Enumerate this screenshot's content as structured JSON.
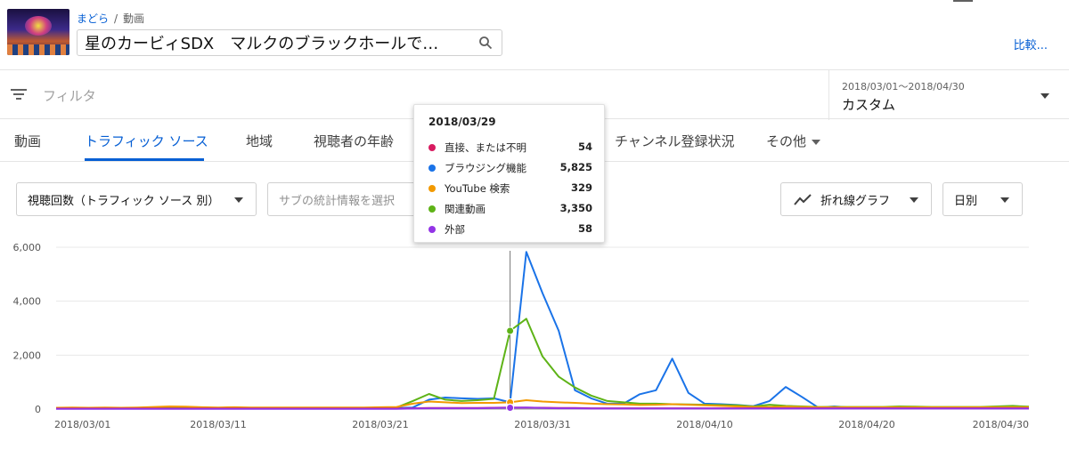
{
  "header": {
    "breadcrumb_channel": "まどら",
    "breadcrumb_sep": "/",
    "breadcrumb_section": "動画",
    "video_title": "星のカービィSDX　マルクのブラックホールで…",
    "compare_label": "比較..."
  },
  "filter": {
    "placeholder": "フィルタ"
  },
  "date": {
    "range": "2018/03/01～2018/04/30",
    "label": "カスタム"
  },
  "tabs": [
    {
      "label": "動画"
    },
    {
      "label": "トラフィック ソース"
    },
    {
      "label": "地域"
    },
    {
      "label": "視聴者の年齢"
    },
    {
      "label": "チャンネル登録状況"
    },
    {
      "label": "その他"
    }
  ],
  "controls": {
    "metric": "視聴回数（トラフィック ソース 別）",
    "sub_metric": "サブの統計情報を選択",
    "chart_type": "折れ線グラフ",
    "interval": "日別"
  },
  "tooltip": {
    "date": "2018/03/29",
    "rows": [
      {
        "name": "直接、または不明",
        "value": "54",
        "color": "#d81b60"
      },
      {
        "name": "ブラウジング機能",
        "value": "5,825",
        "color": "#1a73e8"
      },
      {
        "name": "YouTube 検索",
        "value": "329",
        "color": "#f29900"
      },
      {
        "name": "関連動画",
        "value": "3,350",
        "color": "#5eb317"
      },
      {
        "name": "外部",
        "value": "58",
        "color": "#9334e6"
      }
    ]
  },
  "chart_data": {
    "type": "line",
    "y_ticks": [
      "0",
      "2,000",
      "4,000",
      "6,000"
    ],
    "ylim": [
      0,
      6000
    ],
    "x_start": "2018/03/01",
    "x_tick_labels": [
      "2018/03/01",
      "2018/03/11",
      "2018/03/21",
      "2018/03/31",
      "2018/04/10",
      "2018/04/20",
      "2018/04/30"
    ],
    "highlight_date": "2018/03/29",
    "series": [
      {
        "name": "ブラウジング機能",
        "color": "#1a73e8",
        "values": [
          20,
          30,
          25,
          30,
          20,
          25,
          30,
          25,
          30,
          25,
          30,
          25,
          30,
          25,
          30,
          25,
          30,
          25,
          30,
          25,
          25,
          40,
          60,
          350,
          430,
          400,
          380,
          400,
          250,
          5825,
          4300,
          2900,
          700,
          400,
          200,
          200,
          550,
          700,
          1870,
          600,
          200,
          180,
          150,
          110,
          300,
          820,
          450,
          60,
          100,
          60,
          60,
          60,
          60,
          60,
          60,
          60,
          60,
          60,
          60,
          60,
          60
        ]
      },
      {
        "name": "関連動画",
        "color": "#5eb317",
        "values": [
          40,
          50,
          40,
          50,
          40,
          45,
          50,
          40,
          50,
          40,
          50,
          40,
          50,
          40,
          50,
          40,
          50,
          40,
          50,
          40,
          50,
          60,
          300,
          560,
          350,
          300,
          330,
          380,
          2900,
          3350,
          1950,
          1200,
          800,
          500,
          300,
          250,
          200,
          200,
          180,
          170,
          160,
          150,
          140,
          100,
          160,
          120,
          100,
          80,
          80,
          80,
          80,
          80,
          100,
          90,
          80,
          80,
          80,
          80,
          100,
          120,
          90
        ]
      },
      {
        "name": "YouTube 検索",
        "color": "#f29900",
        "values": [
          50,
          60,
          50,
          60,
          50,
          60,
          80,
          100,
          90,
          70,
          60,
          70,
          60,
          60,
          60,
          60,
          60,
          60,
          60,
          60,
          70,
          80,
          200,
          280,
          250,
          220,
          230,
          230,
          250,
          329,
          280,
          250,
          230,
          200,
          180,
          170,
          150,
          160,
          180,
          160,
          140,
          120,
          100,
          80,
          80,
          90,
          80,
          70,
          70,
          70,
          70,
          70,
          70,
          70,
          70,
          70,
          70,
          70,
          70,
          70,
          70
        ]
      },
      {
        "name": "直接、または不明",
        "color": "#d81b60",
        "values": [
          20,
          20,
          20,
          20,
          20,
          20,
          20,
          20,
          20,
          20,
          20,
          20,
          20,
          20,
          20,
          20,
          20,
          20,
          20,
          20,
          20,
          20,
          30,
          40,
          40,
          40,
          40,
          50,
          60,
          54,
          50,
          40,
          40,
          30,
          30,
          30,
          30,
          30,
          30,
          30,
          30,
          30,
          30,
          30,
          30,
          30,
          30,
          30,
          30,
          30,
          30,
          30,
          30,
          30,
          30,
          30,
          30,
          30,
          30,
          30,
          30
        ]
      },
      {
        "name": "外部",
        "color": "#9334e6",
        "values": [
          10,
          10,
          10,
          10,
          10,
          10,
          10,
          10,
          10,
          10,
          10,
          10,
          10,
          10,
          10,
          10,
          10,
          10,
          10,
          10,
          10,
          10,
          20,
          30,
          30,
          30,
          30,
          40,
          50,
          58,
          40,
          30,
          30,
          20,
          20,
          20,
          20,
          20,
          20,
          20,
          20,
          20,
          20,
          20,
          20,
          20,
          20,
          20,
          20,
          20,
          20,
          20,
          20,
          20,
          20,
          20,
          20,
          20,
          20,
          20,
          20
        ]
      }
    ]
  }
}
